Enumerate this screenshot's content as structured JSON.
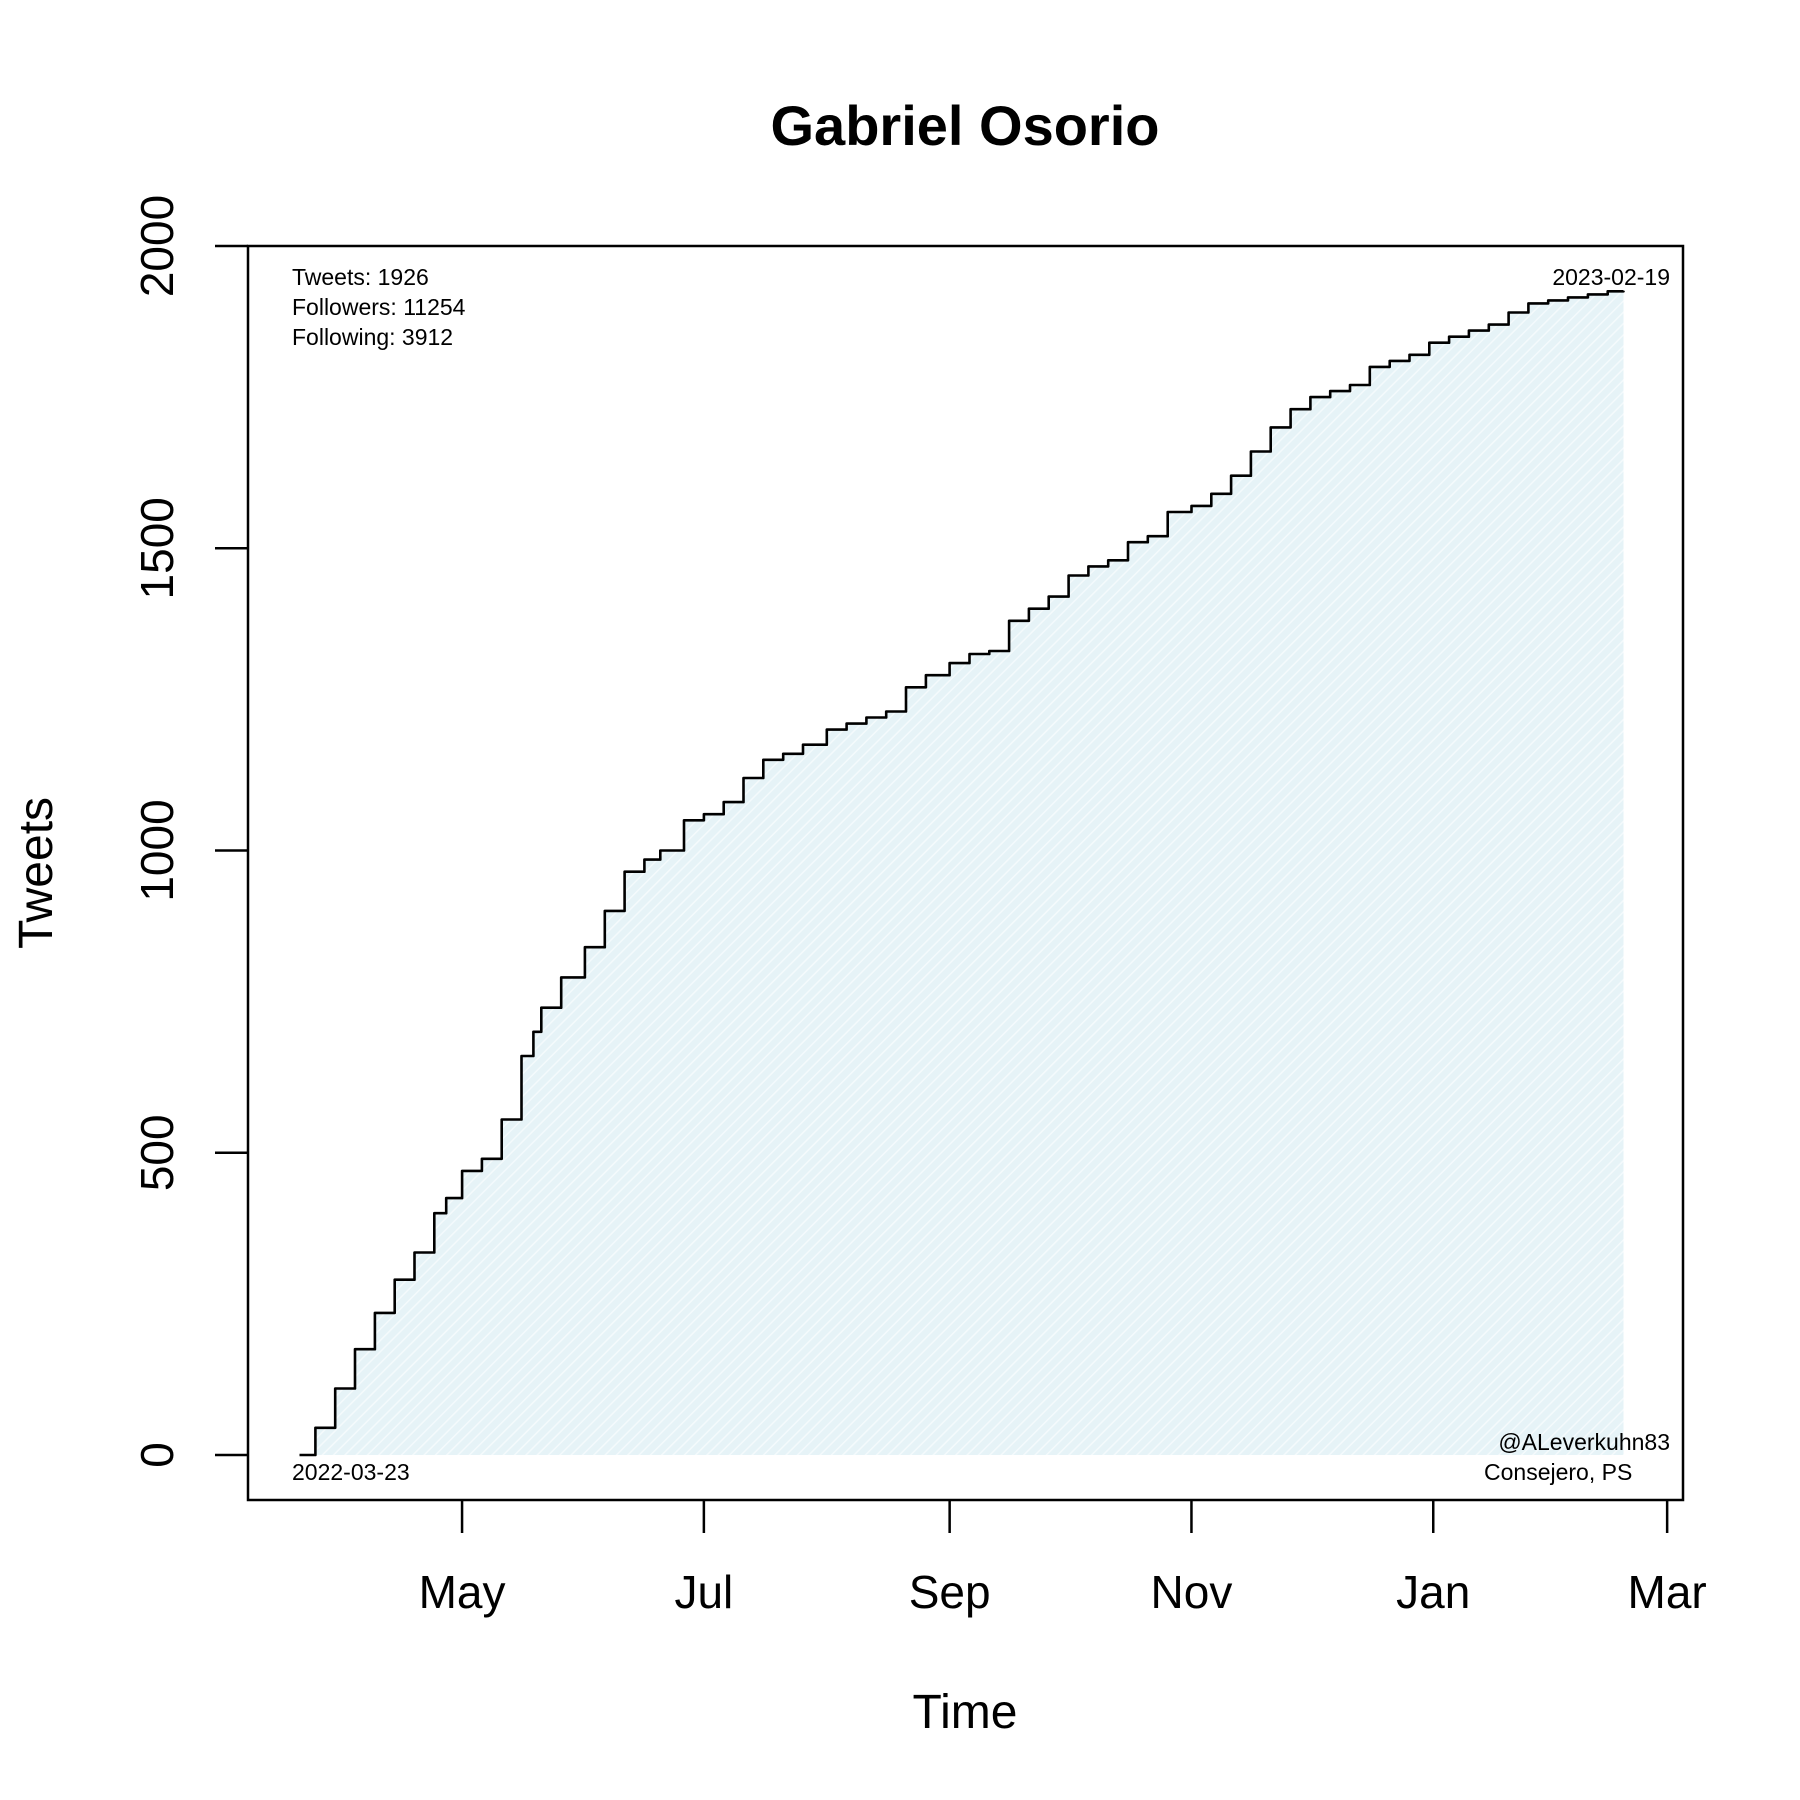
{
  "chart_data": {
    "type": "line",
    "title": "Gabriel Osorio",
    "xlabel": "Time",
    "ylabel": "Tweets",
    "ylim": [
      0,
      2000
    ],
    "xlim": [
      "2022-03-08",
      "2023-03-05"
    ],
    "y_ticks": [
      0,
      500,
      1000,
      1500,
      2000
    ],
    "x_ticks": [
      {
        "date": "2022-05-01",
        "label": "May"
      },
      {
        "date": "2022-07-01",
        "label": "Jul"
      },
      {
        "date": "2022-09-01",
        "label": "Sep"
      },
      {
        "date": "2022-11-01",
        "label": "Nov"
      },
      {
        "date": "2023-01-01",
        "label": "Jan"
      },
      {
        "date": "2023-03-01",
        "label": "Mar"
      }
    ],
    "grid": false,
    "fill_color": "#e6f3f7",
    "line_color": "#000000",
    "annotations": {
      "stats": [
        "Tweets: 1926",
        "Followers: 11254",
        "Following: 3912"
      ],
      "start_date": "2022-03-23",
      "end_date": "2023-02-19",
      "credit": [
        "@ALeverkuhn83",
        "Consejero, PS"
      ]
    },
    "series": [
      {
        "x": [
          "2022-03-21",
          "2022-03-25",
          "2022-03-30",
          "2022-04-04",
          "2022-04-09",
          "2022-04-14",
          "2022-04-19",
          "2022-04-24",
          "2022-04-27",
          "2022-05-01",
          "2022-05-06",
          "2022-05-11",
          "2022-05-16",
          "2022-05-19",
          "2022-05-21",
          "2022-05-26",
          "2022-06-01",
          "2022-06-06",
          "2022-06-11",
          "2022-06-16",
          "2022-06-20",
          "2022-06-26",
          "2022-07-01",
          "2022-07-06",
          "2022-07-11",
          "2022-07-16",
          "2022-07-21",
          "2022-07-26",
          "2022-08-01",
          "2022-08-06",
          "2022-08-11",
          "2022-08-16",
          "2022-08-21",
          "2022-08-26",
          "2022-09-01",
          "2022-09-06",
          "2022-09-11",
          "2022-09-16",
          "2022-09-21",
          "2022-09-26",
          "2022-10-01",
          "2022-10-06",
          "2022-10-11",
          "2022-10-16",
          "2022-10-21",
          "2022-10-26",
          "2022-11-01",
          "2022-11-06",
          "2022-11-11",
          "2022-11-16",
          "2022-11-21",
          "2022-11-26",
          "2022-12-01",
          "2022-12-06",
          "2022-12-11",
          "2022-12-16",
          "2022-12-21",
          "2022-12-26",
          "2022-12-31",
          "2023-01-05",
          "2023-01-10",
          "2023-01-15",
          "2023-01-20",
          "2023-01-25",
          "2023-01-30",
          "2023-02-04",
          "2023-02-09",
          "2023-02-14",
          "2023-02-18"
        ],
        "y": [
          0,
          45,
          110,
          175,
          235,
          290,
          335,
          400,
          425,
          470,
          490,
          555,
          660,
          700,
          740,
          790,
          840,
          900,
          965,
          985,
          1000,
          1050,
          1060,
          1080,
          1120,
          1150,
          1160,
          1175,
          1200,
          1210,
          1220,
          1230,
          1270,
          1290,
          1310,
          1325,
          1330,
          1380,
          1400,
          1420,
          1455,
          1470,
          1480,
          1510,
          1520,
          1560,
          1570,
          1590,
          1620,
          1660,
          1700,
          1730,
          1750,
          1760,
          1770,
          1800,
          1810,
          1820,
          1840,
          1850,
          1860,
          1870,
          1890,
          1905,
          1910,
          1915,
          1920,
          1925,
          1926
        ]
      }
    ]
  }
}
